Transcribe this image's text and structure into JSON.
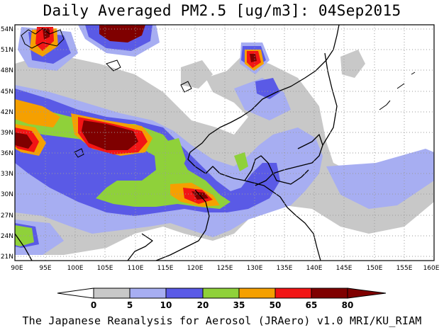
{
  "header": {
    "title": "Daily Averaged PM2.5 [ug/m3]: 04Sep2015"
  },
  "map": {
    "lon_labels": [
      "90E",
      "95E",
      "100E",
      "105E",
      "110E",
      "115E",
      "120E",
      "125E",
      "130E",
      "135E",
      "140E",
      "145E",
      "150E",
      "155E",
      "160E"
    ],
    "lat_labels": [
      "54N",
      "51N",
      "48N",
      "45N",
      "42N",
      "39N",
      "36N",
      "33N",
      "30N",
      "27N",
      "24N",
      "21N"
    ],
    "lon_range": [
      90,
      160
    ],
    "lat_range": [
      20,
      55
    ],
    "gridlines": "dotted"
  },
  "legend": {
    "levels": [
      "0",
      "5",
      "10",
      "20",
      "35",
      "50",
      "65",
      "80"
    ],
    "colors": [
      "#ffffff",
      "#c8c8c8",
      "#a7aef2",
      "#5a5ae6",
      "#8fd13a",
      "#f5a000",
      "#f21515",
      "#7f0000"
    ],
    "arrow_left_color": "#ffffff",
    "arrow_right_color": "#7f0000"
  },
  "footer": {
    "credit": "The Japanese Reanalysis for Aerosol (JRAero) v1.0 MRI/KU_RIAM"
  }
}
